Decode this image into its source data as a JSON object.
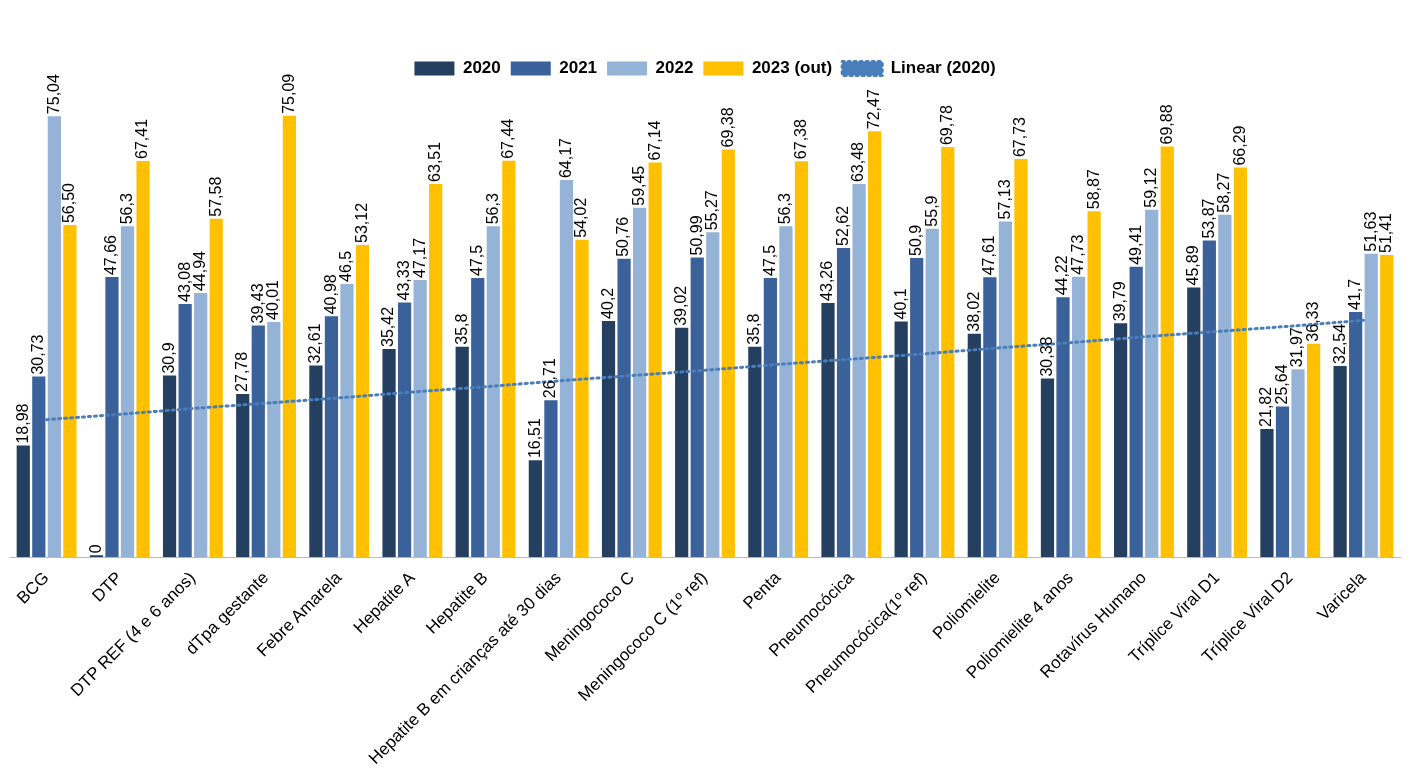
{
  "chart_data": {
    "type": "bar",
    "legend": "top",
    "grid": false,
    "categories": [
      "BCG",
      "DTP",
      "DTP REF (4 e 6 anos)",
      "dTpa gestante",
      "Febre Amarela",
      "Hepatite A",
      "Hepatite B",
      "Hepatite B em crianças até 30 dias",
      "Meningococo C",
      "Meningococo C (1º ref)",
      "Penta",
      "Pneumocócica",
      "Pneumocócica(1º ref)",
      "Poliomielite",
      "Poliomielite 4 anos",
      "Rotavírus Humano",
      "Tríplice Viral D1",
      "Tríplice Viral D2",
      "Varicela"
    ],
    "series": [
      {
        "name": "2020",
        "color": "#243f60",
        "values": [
          18.98,
          0,
          30.9,
          27.78,
          32.61,
          35.42,
          35.8,
          16.51,
          40.2,
          39.02,
          35.8,
          43.26,
          40.1,
          38.02,
          30.38,
          39.79,
          45.89,
          21.82,
          32.54
        ],
        "value_labels": [
          "18,98",
          "0",
          "30,9",
          "27,78",
          "32,61",
          "35,42",
          "35,8",
          "16,51",
          "40,2",
          "39,02",
          "35,8",
          "43,26",
          "40,1",
          "38,02",
          "30,38",
          "39,79",
          "45,89",
          "21,82",
          "32,54"
        ]
      },
      {
        "name": "2021",
        "color": "#3a6199",
        "values": [
          30.73,
          47.66,
          43.08,
          39.43,
          40.98,
          43.33,
          47.5,
          26.71,
          50.76,
          50.99,
          47.5,
          52.62,
          50.9,
          47.61,
          44.22,
          49.41,
          53.87,
          25.64,
          41.7
        ],
        "value_labels": [
          "30,73",
          "47,66",
          "43,08",
          "39,43",
          "40,98",
          "43,33",
          "47,5",
          "26,71",
          "50,76",
          "50,99",
          "47,5",
          "52,62",
          "50,9",
          "47,61",
          "44,22",
          "49,41",
          "53,87",
          "25,64",
          "41,7"
        ]
      },
      {
        "name": "2022",
        "color": "#95b3d7",
        "values": [
          75.04,
          56.3,
          44.94,
          40.01,
          46.5,
          47.17,
          56.3,
          64.17,
          59.45,
          55.27,
          56.3,
          63.48,
          55.9,
          57.13,
          47.73,
          59.12,
          58.27,
          31.97,
          51.63
        ],
        "value_labels": [
          "75,04",
          "56,3",
          "44,94",
          "40,01",
          "46,5",
          "47,17",
          "56,3",
          "64,17",
          "59,45",
          "55,27",
          "56,3",
          "63,48",
          "55,9",
          "57,13",
          "47,73",
          "59,12",
          "58,27",
          "31,97",
          "51,63"
        ]
      },
      {
        "name": "2023 (out)",
        "color": "#ffc000",
        "values": [
          56.5,
          67.41,
          57.58,
          75.09,
          53.12,
          63.51,
          67.44,
          54.02,
          67.14,
          69.38,
          67.38,
          72.47,
          69.78,
          67.73,
          58.87,
          69.88,
          66.29,
          36.33,
          51.41
        ],
        "value_labels": [
          "56,50",
          "67,41",
          "57,58",
          "75,09",
          "53,12",
          "63,51",
          "67,44",
          "54,02",
          "67,14",
          "69,38",
          "67,38",
          "72,47",
          "69,78",
          "67,73",
          "58,87",
          "69,88",
          "66,29",
          "36,33",
          "51,41"
        ]
      },
      {
        "name": "Linear (2020)",
        "type": "line",
        "color": "#4a7ebb",
        "line_style": "dotted",
        "marker": "none",
        "values": [
          23.4,
          24.3,
          25.3,
          26.2,
          27.1,
          28.1,
          29.0,
          30.0,
          30.9,
          31.8,
          32.8,
          33.7,
          34.6,
          35.6,
          36.5,
          37.5,
          38.4,
          39.3,
          40.3
        ]
      }
    ]
  }
}
